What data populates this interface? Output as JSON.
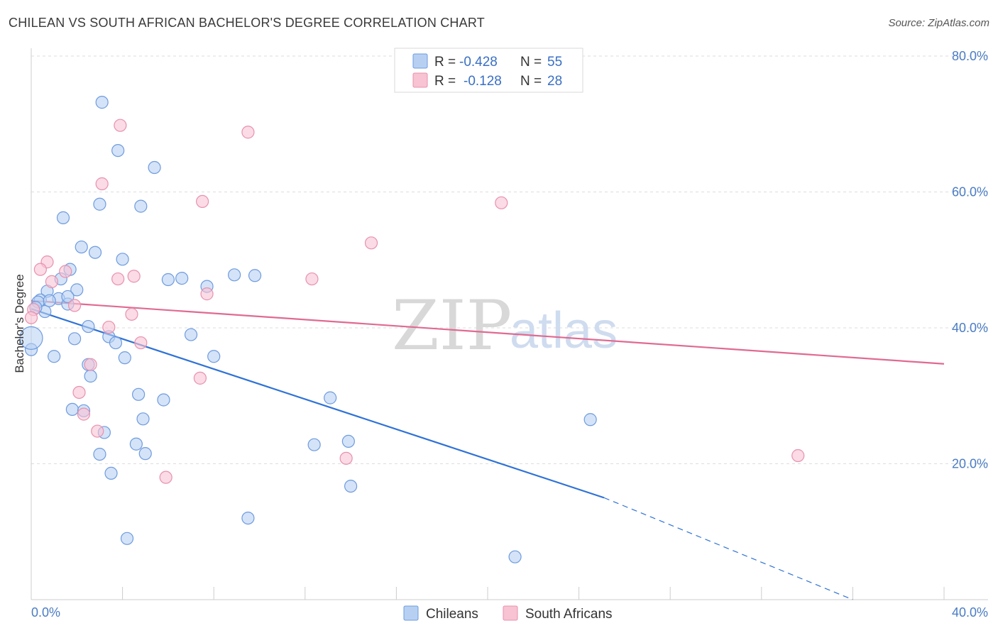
{
  "title": "CHILEAN VS SOUTH AFRICAN BACHELOR'S DEGREE CORRELATION CHART",
  "source": "Source: ZipAtlas.com",
  "watermark": {
    "zip": "ZIP",
    "atlas": "atlas"
  },
  "colors": {
    "chileans_fill": "#b7d0f2",
    "chileans_stroke": "#6e9be0",
    "chileans_line": "#2f72d6",
    "sa_fill": "#f8c3d3",
    "sa_stroke": "#e891ad",
    "sa_line": "#e06a92",
    "grid": "#dddddd",
    "tick_text": "#4a7cc4"
  },
  "legend": {
    "row1": {
      "r_label": "R =",
      "r_value": "-0.428",
      "n_label": "N =",
      "n_value": "55"
    },
    "row2": {
      "r_label": "R =",
      "r_value": "-0.128",
      "n_label": "N =",
      "n_value": "28"
    }
  },
  "chart_data": {
    "type": "scatter",
    "title": "CHILEAN VS SOUTH AFRICAN BACHELOR'S DEGREE CORRELATION CHART",
    "xlabel": "",
    "ylabel": "Bachelor's Degree",
    "xlim": [
      0,
      40
    ],
    "ylim": [
      0,
      80
    ],
    "x_tick_labels": [
      "0.0%",
      "40.0%"
    ],
    "y_ticks": [
      20,
      40,
      60,
      80
    ],
    "y_tick_labels": [
      "20.0%",
      "40.0%",
      "60.0%",
      "80.0%"
    ],
    "legend_position": "bottom-center",
    "series": [
      {
        "name": "Chileans",
        "r": -0.428,
        "n": 55,
        "trend": {
          "x0": 0.0,
          "y0": 42.8,
          "x1": 25.1,
          "y1": 15.0,
          "dash_x1": 36.0,
          "dash_y1": 0.0
        },
        "points": [
          [
            3.1,
            73.2
          ],
          [
            3.8,
            66.1
          ],
          [
            5.4,
            63.6
          ],
          [
            3.0,
            58.2
          ],
          [
            4.8,
            57.9
          ],
          [
            1.4,
            56.2
          ],
          [
            2.2,
            51.9
          ],
          [
            2.8,
            51.1
          ],
          [
            4.0,
            50.1
          ],
          [
            1.7,
            48.6
          ],
          [
            1.3,
            47.2
          ],
          [
            6.0,
            47.1
          ],
          [
            6.6,
            47.3
          ],
          [
            8.9,
            47.8
          ],
          [
            9.8,
            47.7
          ],
          [
            7.7,
            46.1
          ],
          [
            0.7,
            45.4
          ],
          [
            2.0,
            45.6
          ],
          [
            0.4,
            44.1
          ],
          [
            1.2,
            44.3
          ],
          [
            1.6,
            43.5
          ],
          [
            0.3,
            43.8
          ],
          [
            0.6,
            42.4
          ],
          [
            2.5,
            40.2
          ],
          [
            3.4,
            38.7
          ],
          [
            1.9,
            38.4
          ],
          [
            3.7,
            37.8
          ],
          [
            0.0,
            36.8
          ],
          [
            7.0,
            39.0
          ],
          [
            1.0,
            35.8
          ],
          [
            2.5,
            34.6
          ],
          [
            4.1,
            35.6
          ],
          [
            8.0,
            35.8
          ],
          [
            2.6,
            32.9
          ],
          [
            4.7,
            30.2
          ],
          [
            5.8,
            29.4
          ],
          [
            13.1,
            29.7
          ],
          [
            1.8,
            28.0
          ],
          [
            2.3,
            27.8
          ],
          [
            4.9,
            26.6
          ],
          [
            24.5,
            26.5
          ],
          [
            3.2,
            24.6
          ],
          [
            13.9,
            23.3
          ],
          [
            4.6,
            22.9
          ],
          [
            12.4,
            22.8
          ],
          [
            3.0,
            21.4
          ],
          [
            5.0,
            21.5
          ],
          [
            3.5,
            18.6
          ],
          [
            14.0,
            16.7
          ],
          [
            9.5,
            12.0
          ],
          [
            4.2,
            9.0
          ],
          [
            21.2,
            6.3
          ],
          [
            0.8,
            44.0
          ],
          [
            1.6,
            44.6
          ],
          [
            0.2,
            43.0
          ]
        ]
      },
      {
        "name": "South Africans",
        "r": -0.128,
        "n": 28,
        "trend": {
          "x0": 0.0,
          "y0": 44.0,
          "x1": 40.0,
          "y1": 34.7
        },
        "points": [
          [
            3.9,
            69.8
          ],
          [
            9.5,
            68.8
          ],
          [
            3.1,
            61.2
          ],
          [
            7.5,
            58.6
          ],
          [
            20.6,
            58.4
          ],
          [
            14.9,
            52.5
          ],
          [
            0.7,
            49.7
          ],
          [
            0.4,
            48.6
          ],
          [
            1.5,
            48.3
          ],
          [
            4.5,
            47.6
          ],
          [
            3.8,
            47.2
          ],
          [
            12.3,
            47.2
          ],
          [
            0.9,
            46.8
          ],
          [
            7.7,
            45.0
          ],
          [
            1.9,
            43.3
          ],
          [
            4.4,
            42.0
          ],
          [
            0.1,
            42.7
          ],
          [
            0.0,
            41.5
          ],
          [
            3.4,
            40.1
          ],
          [
            4.8,
            37.8
          ],
          [
            2.6,
            34.6
          ],
          [
            7.4,
            32.6
          ],
          [
            2.1,
            30.5
          ],
          [
            2.3,
            27.3
          ],
          [
            2.9,
            24.8
          ],
          [
            13.8,
            20.8
          ],
          [
            33.6,
            21.2
          ],
          [
            5.9,
            18.0
          ]
        ]
      }
    ]
  }
}
